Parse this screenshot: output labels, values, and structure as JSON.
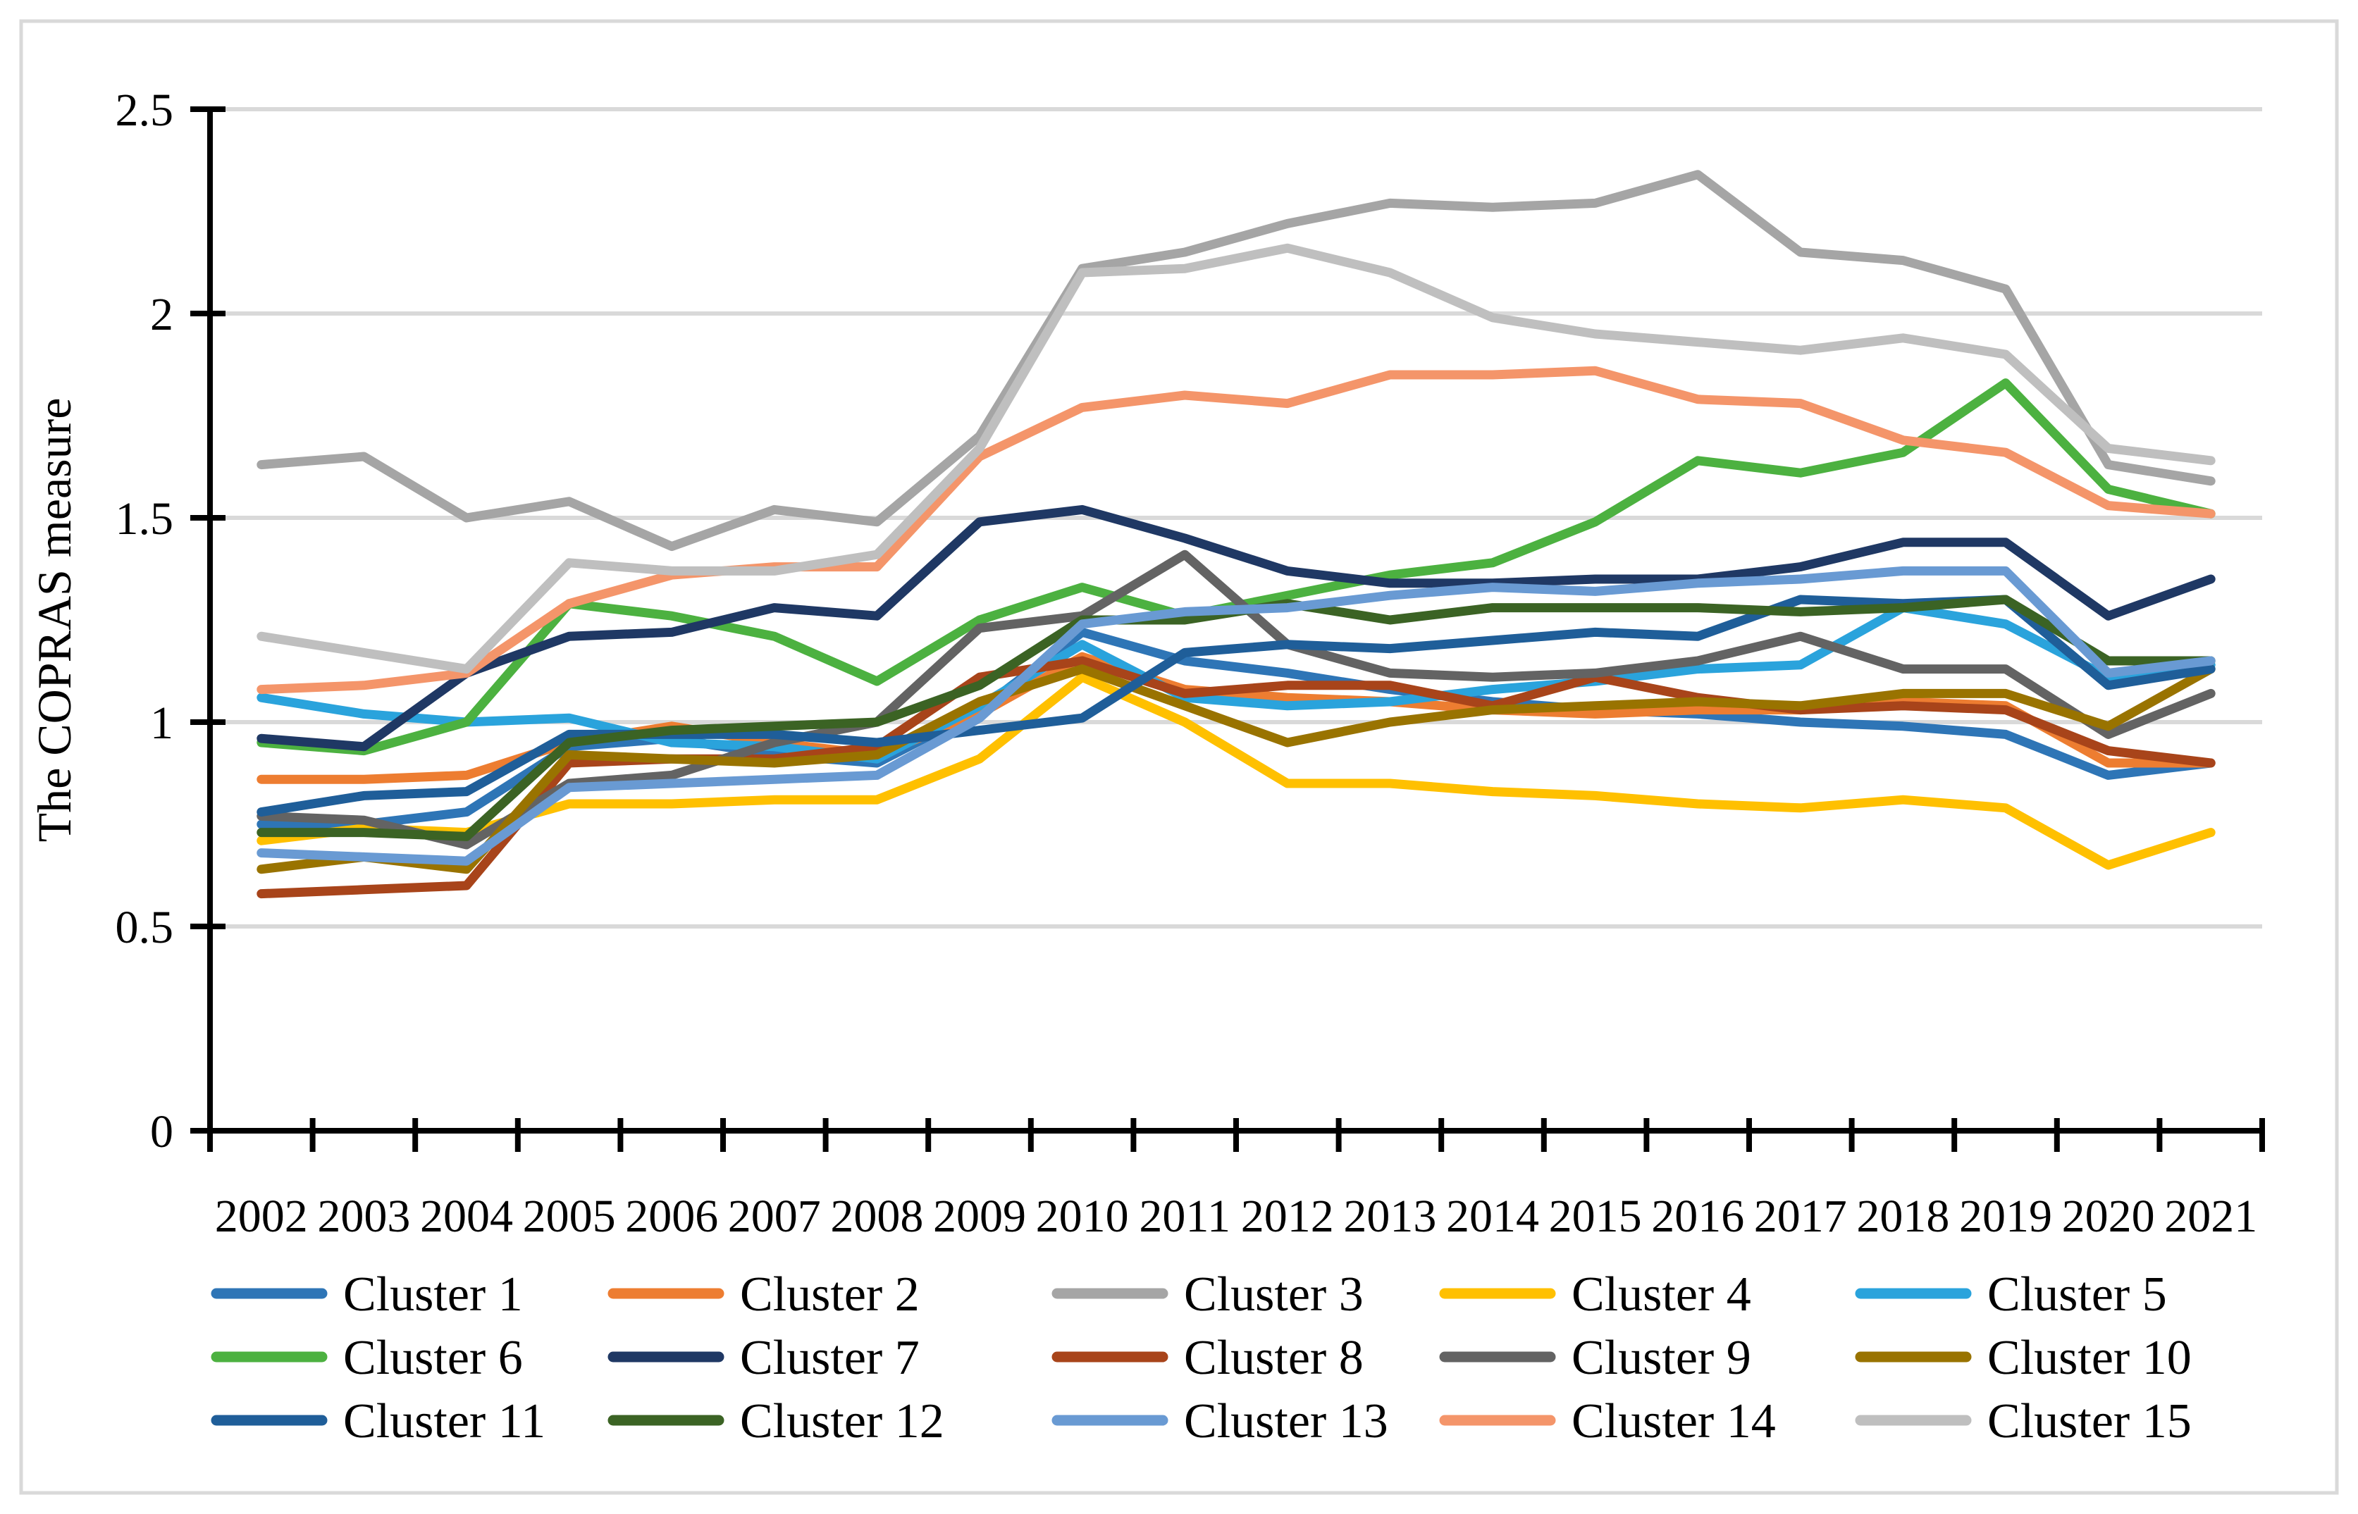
{
  "chart_data": {
    "type": "line",
    "title": "",
    "xlabel": "",
    "ylabel": "The COPRAS measure",
    "ylim": [
      0,
      2.5
    ],
    "ytick_values": [
      0,
      0.5,
      1,
      1.5,
      2,
      2.5
    ],
    "ytick_labels": [
      "0",
      "0.5",
      "1",
      "1.5",
      "2",
      "2.5"
    ],
    "grid": "horizontal",
    "legend_position": "bottom",
    "x": [
      2002,
      2003,
      2004,
      2005,
      2006,
      2007,
      2008,
      2009,
      2010,
      2011,
      2012,
      2013,
      2014,
      2015,
      2016,
      2017,
      2018,
      2019,
      2020,
      2021
    ],
    "series": [
      {
        "name": "Cluster 1",
        "color": "#2E75B6",
        "values": [
          0.75,
          0.75,
          0.78,
          0.94,
          0.96,
          0.92,
          0.9,
          1.03,
          1.22,
          1.15,
          1.12,
          1.08,
          1.05,
          1.03,
          1.02,
          1.0,
          0.99,
          0.97,
          0.87,
          0.9
        ]
      },
      {
        "name": "Cluster 2",
        "color": "#ED7D31",
        "values": [
          0.86,
          0.86,
          0.87,
          0.95,
          0.99,
          0.95,
          0.92,
          1.02,
          1.16,
          1.08,
          1.06,
          1.05,
          1.03,
          1.02,
          1.03,
          1.03,
          1.05,
          1.04,
          0.9,
          0.9
        ]
      },
      {
        "name": "Cluster 3",
        "color": "#A5A5A5",
        "values": [
          1.63,
          1.65,
          1.5,
          1.54,
          1.43,
          1.52,
          1.49,
          1.7,
          2.11,
          2.15,
          2.22,
          2.27,
          2.26,
          2.27,
          2.34,
          2.15,
          2.13,
          2.06,
          1.63,
          1.59
        ]
      },
      {
        "name": "Cluster 4",
        "color": "#FFC000",
        "values": [
          0.71,
          0.74,
          0.73,
          0.8,
          0.8,
          0.81,
          0.81,
          0.91,
          1.11,
          1.0,
          0.85,
          0.85,
          0.83,
          0.82,
          0.8,
          0.79,
          0.81,
          0.79,
          0.65,
          0.73
        ]
      },
      {
        "name": "Cluster 5",
        "color": "#2AA3DC",
        "values": [
          1.06,
          1.02,
          1.0,
          1.01,
          0.95,
          0.94,
          0.91,
          1.04,
          1.19,
          1.06,
          1.04,
          1.05,
          1.08,
          1.1,
          1.13,
          1.14,
          1.28,
          1.24,
          1.11,
          1.14
        ]
      },
      {
        "name": "Cluster 6",
        "color": "#4CB140",
        "values": [
          0.95,
          0.93,
          1.0,
          1.29,
          1.26,
          1.21,
          1.1,
          1.25,
          1.33,
          1.26,
          1.31,
          1.36,
          1.39,
          1.49,
          1.64,
          1.61,
          1.66,
          1.83,
          1.57,
          1.51
        ]
      },
      {
        "name": "Cluster 7",
        "color": "#1F3864",
        "values": [
          0.96,
          0.94,
          1.12,
          1.21,
          1.22,
          1.28,
          1.26,
          1.49,
          1.52,
          1.45,
          1.37,
          1.34,
          1.34,
          1.35,
          1.35,
          1.38,
          1.44,
          1.44,
          1.26,
          1.35
        ]
      },
      {
        "name": "Cluster 8",
        "color": "#A8441A",
        "values": [
          0.58,
          0.59,
          0.6,
          0.9,
          0.91,
          0.91,
          0.94,
          1.11,
          1.15,
          1.07,
          1.09,
          1.09,
          1.04,
          1.11,
          1.06,
          1.03,
          1.04,
          1.03,
          0.93,
          0.9
        ]
      },
      {
        "name": "Cluster 9",
        "color": "#636363",
        "values": [
          0.77,
          0.76,
          0.7,
          0.85,
          0.87,
          0.95,
          1.0,
          1.23,
          1.26,
          1.41,
          1.19,
          1.12,
          1.11,
          1.12,
          1.15,
          1.21,
          1.13,
          1.13,
          0.97,
          1.07
        ]
      },
      {
        "name": "Cluster 10",
        "color": "#997300",
        "values": [
          0.64,
          0.67,
          0.64,
          0.92,
          0.91,
          0.9,
          0.92,
          1.05,
          1.13,
          1.04,
          0.95,
          1.0,
          1.03,
          1.04,
          1.05,
          1.04,
          1.07,
          1.07,
          0.99,
          1.13
        ]
      },
      {
        "name": "Cluster 11",
        "color": "#1F5E99",
        "values": [
          0.78,
          0.82,
          0.83,
          0.97,
          0.97,
          0.97,
          0.95,
          0.98,
          1.01,
          1.17,
          1.19,
          1.18,
          1.2,
          1.22,
          1.21,
          1.3,
          1.29,
          1.3,
          1.09,
          1.13
        ]
      },
      {
        "name": "Cluster 12",
        "color": "#3B6324",
        "values": [
          0.73,
          0.73,
          0.72,
          0.95,
          0.98,
          0.99,
          1.0,
          1.09,
          1.25,
          1.25,
          1.29,
          1.25,
          1.28,
          1.28,
          1.28,
          1.27,
          1.28,
          1.3,
          1.15,
          1.15
        ]
      },
      {
        "name": "Cluster 13",
        "color": "#699AD3",
        "values": [
          0.68,
          0.67,
          0.66,
          0.84,
          0.85,
          0.86,
          0.87,
          1.01,
          1.24,
          1.27,
          1.28,
          1.31,
          1.33,
          1.32,
          1.34,
          1.35,
          1.37,
          1.37,
          1.12,
          1.15
        ]
      },
      {
        "name": "Cluster 14",
        "color": "#F4956A",
        "values": [
          1.08,
          1.09,
          1.12,
          1.29,
          1.36,
          1.38,
          1.38,
          1.65,
          1.77,
          1.8,
          1.78,
          1.85,
          1.85,
          1.86,
          1.79,
          1.78,
          1.69,
          1.66,
          1.53,
          1.51
        ]
      },
      {
        "name": "Cluster 15",
        "color": "#BFBFBF",
        "values": [
          1.21,
          1.17,
          1.13,
          1.39,
          1.37,
          1.37,
          1.41,
          1.67,
          2.1,
          2.11,
          2.16,
          2.1,
          1.99,
          1.95,
          1.93,
          1.91,
          1.94,
          1.9,
          1.67,
          1.64
        ]
      }
    ]
  },
  "style_colors": {
    "gridline": "#D9D9D9",
    "axis": "#000000",
    "figure_border": "#D9D9D9",
    "background": "#FFFFFF"
  }
}
